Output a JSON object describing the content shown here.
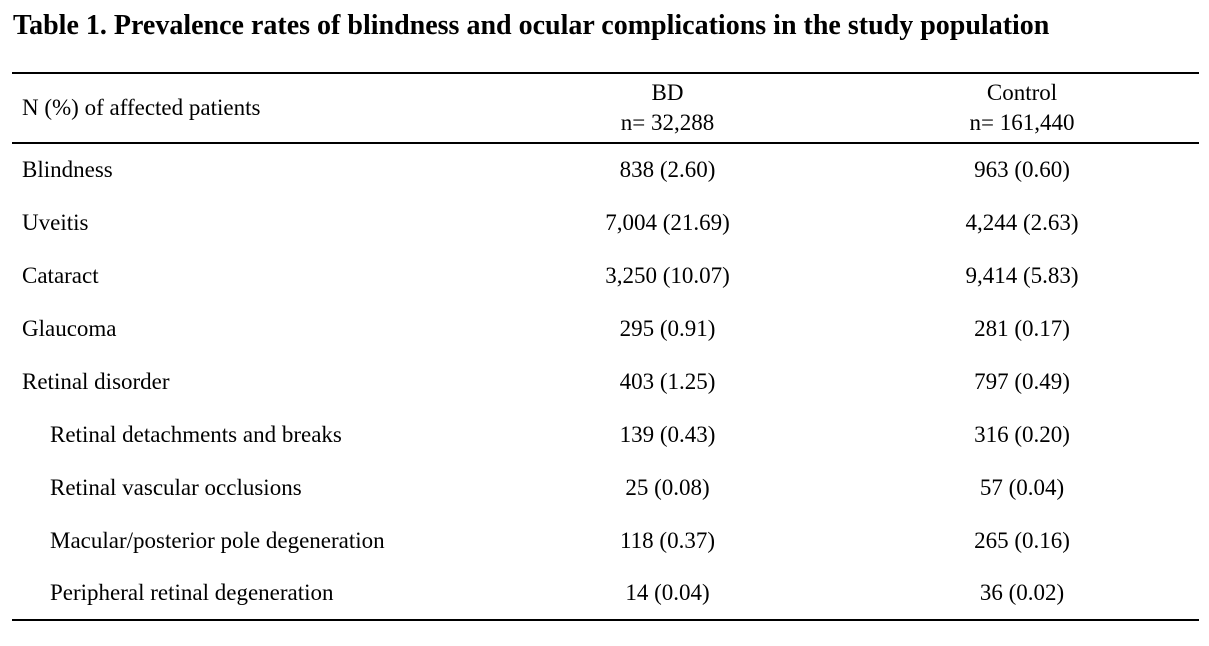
{
  "title": "Table 1. Prevalence rates of blindness and ocular complications in the study population",
  "table": {
    "header": {
      "col1": "N (%) of affected patients",
      "col2_line1": "BD",
      "col2_line2": "n= 32,288",
      "col3_line1": "Control",
      "col3_line2": "n= 161,440"
    },
    "rows": [
      {
        "label": "Blindness",
        "bd": "838 (2.60)",
        "control": "963 (0.60)",
        "indent": false
      },
      {
        "label": "Uveitis",
        "bd": "7,004 (21.69)",
        "control": "4,244 (2.63)",
        "indent": false
      },
      {
        "label": "Cataract",
        "bd": "3,250 (10.07)",
        "control": "9,414 (5.83)",
        "indent": false
      },
      {
        "label": "Glaucoma",
        "bd": "295 (0.91)",
        "control": "281 (0.17)",
        "indent": false
      },
      {
        "label": "Retinal disorder",
        "bd": "403 (1.25)",
        "control": "797 (0.49)",
        "indent": false
      },
      {
        "label": "Retinal detachments and breaks",
        "bd": "139 (0.43)",
        "control": "316 (0.20)",
        "indent": true
      },
      {
        "label": "Retinal vascular occlusions",
        "bd": "25 (0.08)",
        "control": "57 (0.04)",
        "indent": true
      },
      {
        "label": "Macular/posterior pole degeneration",
        "bd": "118 (0.37)",
        "control": "265 (0.16)",
        "indent": true
      },
      {
        "label": "Peripheral retinal degeneration",
        "bd": "14 (0.04)",
        "control": "36 (0.02)",
        "indent": true
      }
    ]
  },
  "colors": {
    "text": "#000000",
    "background": "#ffffff",
    "rule": "#000000"
  }
}
